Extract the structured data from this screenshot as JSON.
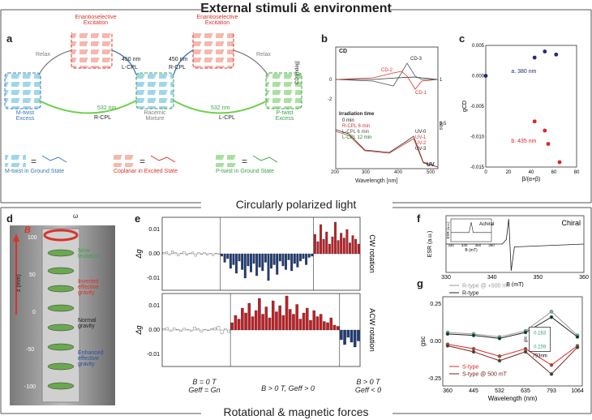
{
  "header": {
    "title": "External stimuli & environment"
  },
  "section_top": {
    "label": "Circularly polarized light"
  },
  "section_bottom": {
    "label": "Rotational & magnetic forces"
  },
  "panels": {
    "a": "a",
    "b": "b",
    "c": "c",
    "d": "d",
    "e": "e",
    "f": "f",
    "g": "g"
  },
  "panel_a": {
    "enantio_left": "Enantioselective\nExcitation",
    "enantio_right": "Enantioselective\nExcitation",
    "relax_left": "Relax",
    "relax_right": "Relax",
    "nm450_left": "450 nm",
    "nm450_right": "450 nm",
    "lcpl_top": "L-CPL",
    "rcpl_top": "R-CPL",
    "nm532_left": "532 nm",
    "nm532_right": "532 nm",
    "rcpl_bot": "R-CPL",
    "lcpl_bot": "L-CPL",
    "m_twist": "M-twist\nExcess",
    "racemic": "Racemic\nMixture",
    "p_twist": "P-twist\nExcess",
    "legend_m": "M-twist in Ground State",
    "legend_c": "Coplanar in Excited State",
    "legend_p": "P-twist in Ground State",
    "colors": {
      "blue": "#3b78b4",
      "red": "#d9332b",
      "green": "#3fa14a",
      "gray": "#808080"
    }
  },
  "panel_b": {
    "ylabel_left": "CD [mdeg]",
    "ylabel_right": "Abs",
    "xlabel": "Wavelength [nm]",
    "cd_label": "CD",
    "uv_label": "UV",
    "irr_title": "Irradiation time",
    "legend": [
      "0 min",
      "R-CPL 6 min",
      "L-CPL 6 min",
      "L-CPL 12 min"
    ],
    "uv_legend": [
      "UV-0",
      "UV-1",
      "UV-2",
      "UV-3"
    ],
    "curve_labels": [
      "CD-3",
      "CD-2",
      "CD-1"
    ],
    "yticks_left": [
      "0",
      "-2"
    ],
    "yticks_right": [
      "1",
      "0.5"
    ],
    "xticks": [
      "200",
      "300",
      "400",
      "500"
    ]
  },
  "chart_data": [
    {
      "type": "scatter",
      "title": "",
      "xlabel": "β/(α+β)",
      "ylabel": "gCD",
      "xlim": [
        0,
        80
      ],
      "ylim": [
        -0.015,
        0.005
      ],
      "x_ticks": [
        "0",
        "20",
        "40",
        "60",
        "80"
      ],
      "y_ticks": [
        "0.005",
        "0.000",
        "-0.005",
        "-0.010",
        "-0.015"
      ],
      "series": [
        {
          "name": "a. 380 nm",
          "color": "#1f2a7a",
          "points": [
            [
              0,
              0.0
            ],
            [
              43,
              0.003
            ],
            [
              52,
              0.004
            ],
            [
              62,
              0.0035
            ]
          ]
        },
        {
          "name": "b. 435 nm",
          "color": "#e02424",
          "points": [
            [
              43,
              -0.0075
            ],
            [
              52,
              -0.009
            ],
            [
              55,
              -0.0112
            ],
            [
              65,
              -0.0142
            ]
          ]
        }
      ]
    },
    {
      "type": "bar",
      "title": "CW rotation",
      "ylabel": "Δg",
      "ylim": [
        -0.015,
        0.015
      ],
      "y_ticks": [
        "0.01",
        "0.00",
        "-0.01"
      ],
      "regions": [
        {
          "label_key": "r1",
          "color": "#ffffff",
          "values": [
            0.0005,
            0.0008,
            -0.0004,
            0.0012,
            0.0006,
            -0.0008,
            0.0003,
            0.0009,
            -0.0006,
            0.0002,
            0.0007,
            -0.001,
            0.0004,
            -0.0003,
            0.0006,
            -0.0005,
            0.0002,
            -0.0007,
            0.0003,
            -0.0002
          ]
        },
        {
          "label_key": "r2",
          "color": "#1f3d7a",
          "values": [
            -0.001,
            -0.0035,
            -0.002,
            -0.006,
            -0.0045,
            -0.008,
            -0.003,
            -0.0065,
            -0.01,
            -0.005,
            -0.0075,
            -0.004,
            -0.009,
            -0.0055,
            -0.007,
            -0.0035,
            -0.011,
            -0.006,
            -0.0045,
            -0.0085,
            -0.003,
            -0.005,
            -0.0065,
            -0.0025,
            -0.007,
            -0.004,
            -0.0055,
            -0.003,
            -0.002,
            -0.0045,
            -0.0015,
            -0.001
          ]
        },
        {
          "label_key": "r3",
          "color": "#c41e24",
          "values": [
            0.008,
            0.005,
            0.012,
            0.006,
            0.009,
            0.004,
            0.007,
            0.013,
            0.0055,
            0.0085,
            0.0065,
            0.01,
            0.0045,
            0.0075,
            0.006,
            0.004
          ]
        }
      ]
    },
    {
      "type": "bar",
      "title": "ACW rotation",
      "ylabel": "Δg",
      "ylim": [
        -0.015,
        0.015
      ],
      "y_ticks": [
        "0.01",
        "0.00",
        "-0.01"
      ],
      "regions": [
        {
          "label_key": "r1",
          "color": "#ffffff",
          "values": [
            0.0004,
            0.001,
            -0.0005,
            0.0008,
            0.0003,
            -0.0006,
            0.0007,
            0.0002,
            -0.0004,
            0.0012,
            0.0005,
            -0.0008,
            0.0003,
            -0.0002,
            0.0006,
            0.0009,
            0.0015,
            -0.0015,
            0.0004,
            -0.001
          ]
        },
        {
          "label_key": "r2",
          "color": "#c41e24",
          "values": [
            0.003,
            0.006,
            0.0045,
            0.009,
            0.007,
            0.011,
            0.0055,
            0.008,
            0.013,
            0.0065,
            0.0095,
            0.005,
            0.012,
            0.0075,
            0.01,
            0.006,
            0.014,
            0.0085,
            0.0065,
            0.0105,
            0.0045,
            0.007,
            0.009,
            0.004,
            0.008,
            0.0055,
            0.0065,
            0.0035,
            0.003,
            0.005,
            0.002,
            0.0015
          ]
        },
        {
          "label_key": "r3",
          "color": "#1f3d7a",
          "values": [
            -0.004,
            -0.006,
            -0.003,
            -0.005,
            -0.007,
            -0.0045
          ]
        }
      ]
    },
    {
      "type": "line",
      "title": "Chiral",
      "xlabel": "B (mT)",
      "ylabel": "ESR (a.u.)",
      "xlim": [
        330,
        360
      ],
      "x_ticks": [
        "330",
        "340",
        "350",
        "360"
      ],
      "inset": {
        "title": "Achiral",
        "xlabel": "B (mT)",
        "ylabel": "ESR (a.u.)",
        "x_ticks": [
          "330",
          "340",
          "350",
          "360"
        ]
      }
    },
    {
      "type": "line",
      "xlabel": "Wavelength (nm)",
      "ylabel": "gsc",
      "categories": [
        "360",
        "445",
        "532",
        "635",
        "793",
        "1064"
      ],
      "y_ticks": [
        "0.25",
        "0.00",
        "-0.25"
      ],
      "ylim": [
        -0.3,
        0.3
      ],
      "series": [
        {
          "name": "R-type @ +500 mT",
          "color": "#9a9a9a",
          "values": [
            0.06,
            0.05,
            0.03,
            0.07,
            0.2,
            0.04
          ]
        },
        {
          "name": "R-type",
          "color": "#222222",
          "values": [
            0.05,
            0.04,
            0.02,
            0.06,
            0.163,
            0.03
          ]
        },
        {
          "name": "S-type",
          "color": "#e02424",
          "values": [
            -0.02,
            -0.05,
            -0.1,
            -0.05,
            -0.159,
            -0.03
          ]
        },
        {
          "name": "S-type @ 500 mT",
          "color": "#7a2020",
          "values": [
            -0.03,
            -0.07,
            -0.13,
            -0.07,
            -0.22,
            -0.04
          ]
        }
      ],
      "inset": {
        "values": [
          "0.163",
          "0.159"
        ],
        "ylabel": "gsc",
        "xlabel": "793nm"
      }
    }
  ],
  "panel_d": {
    "field_label": "B",
    "omega_label": "ω",
    "axis_label": "z (mm)",
    "y_ticks": [
      "100",
      "50",
      "0",
      "-50",
      "-100"
    ],
    "near_levitation": "Near\nlevitation",
    "inverted": "Inverted\neffective\ngravity",
    "normal": "Normal\ngravity",
    "enhanced": "Enhanced\neffective\ngravity"
  },
  "panel_e": {
    "bottom_labels": {
      "r1": "B = 0 T\nGeff = Gn",
      "r2": "B > 0 T, Geff > 0",
      "r3": "B > 0 T\nGeff < 0"
    }
  }
}
